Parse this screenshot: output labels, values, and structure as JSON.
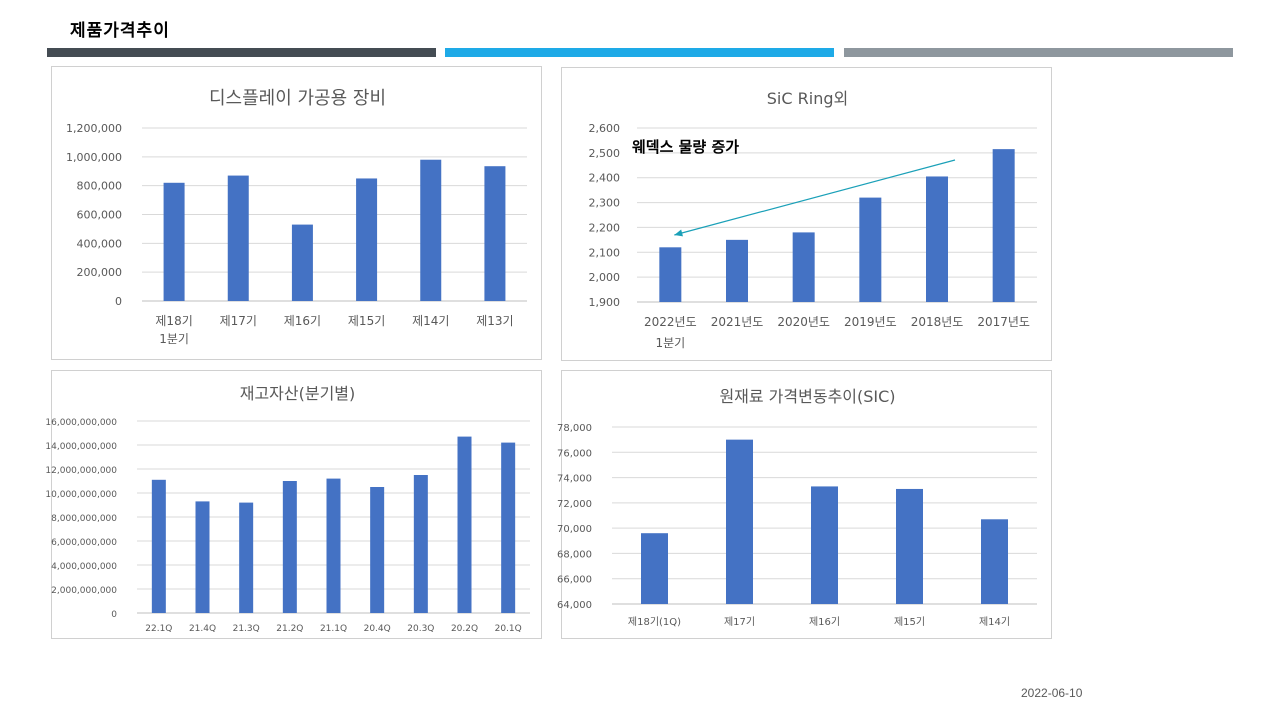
{
  "page": {
    "title": "제품가격추이",
    "date": "2022-06-10",
    "strip_colors": [
      "#444c53",
      "#1eaae7",
      "#8e979e"
    ]
  },
  "chart_data": [
    {
      "type": "bar",
      "title": "디스플레이 가공용 장비",
      "categories": [
        "제18기\n1분기",
        "제17기",
        "제16기",
        "제15기",
        "제14기",
        "제13기"
      ],
      "values": [
        820000,
        870000,
        530000,
        850000,
        980000,
        935000
      ],
      "ylim": [
        0,
        1200000
      ],
      "yticks": [
        "0",
        "200,000",
        "400,000",
        "600,000",
        "800,000",
        "1,000,000",
        "1,200,000"
      ],
      "grid": true,
      "bar_color": "#4472c4"
    },
    {
      "type": "bar",
      "title": "SiC Ring외",
      "categories": [
        "2022년도\n1분기",
        "2021년도",
        "2020년도",
        "2019년도",
        "2018년도",
        "2017년도"
      ],
      "values": [
        2120,
        2150,
        2180,
        2320,
        2405,
        2515
      ],
      "ylim": [
        1900,
        2600
      ],
      "yticks": [
        "1,900",
        "2,000",
        "2,100",
        "2,200",
        "2,300",
        "2,400",
        "2,500",
        "2,600"
      ],
      "grid": true,
      "bar_color": "#4472c4",
      "annotation": {
        "text": "웨덱스 물량 증가",
        "arrow_color": "#1aa0b8"
      }
    },
    {
      "type": "bar",
      "title": "재고자산(분기별)",
      "categories": [
        "22.1Q",
        "21.4Q",
        "21.3Q",
        "21.2Q",
        "21.1Q",
        "20.4Q",
        "20.3Q",
        "20.2Q",
        "20.1Q"
      ],
      "values": [
        11100000000,
        9300000000,
        9200000000,
        11000000000,
        11200000000,
        10500000000,
        11500000000,
        14700000000,
        14200000000
      ],
      "ylim": [
        0,
        16000000000
      ],
      "yticks": [
        "0",
        "2,000,000,000",
        "4,000,000,000",
        "6,000,000,000",
        "8,000,000,000",
        "10,000,000,000",
        "12,000,000,000",
        "14,000,000,000",
        "16,000,000,000"
      ],
      "grid": true,
      "bar_color": "#4472c4"
    },
    {
      "type": "bar",
      "title": "원재료 가격변동추이(SIC)",
      "categories": [
        "제18기(1Q)",
        "제17기",
        "제16기",
        "제15기",
        "제14기"
      ],
      "values": [
        69600,
        77000,
        73300,
        73100,
        70700
      ],
      "ylim": [
        64000,
        78000
      ],
      "yticks": [
        "64,000",
        "66,000",
        "68,000",
        "70,000",
        "72,000",
        "74,000",
        "76,000",
        "78,000"
      ],
      "grid": true,
      "bar_color": "#4472c4"
    }
  ]
}
